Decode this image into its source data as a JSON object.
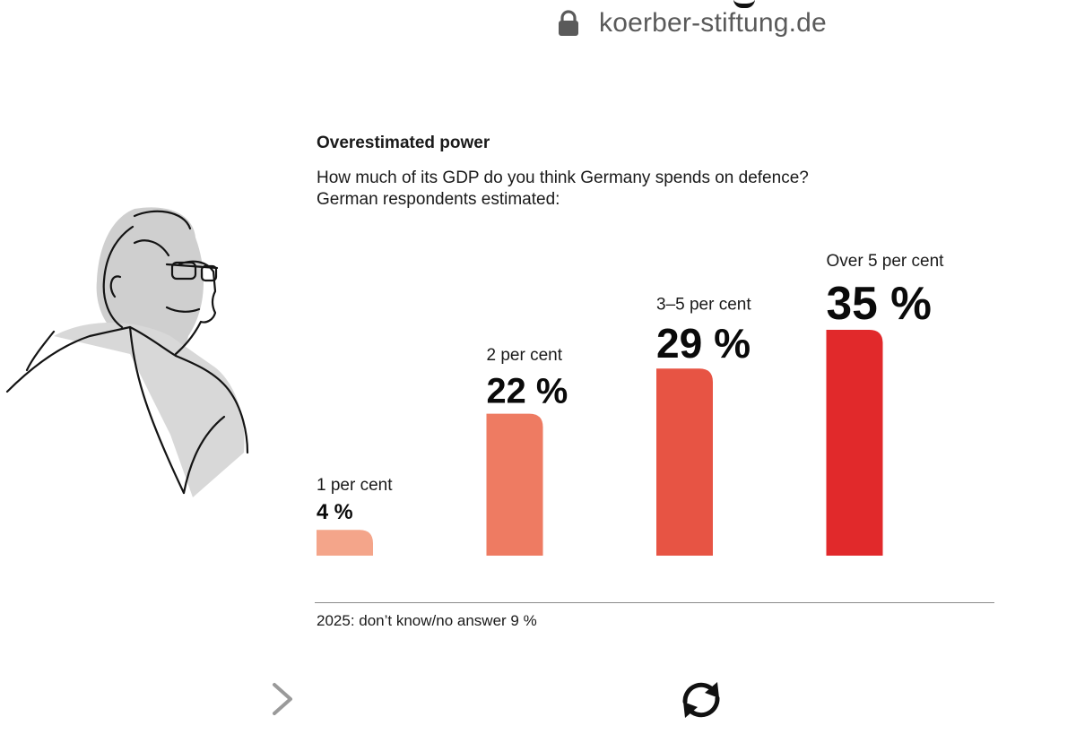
{
  "browser": {
    "url": "koerber-stiftung.de",
    "lock_icon": "lock-icon",
    "next_icon": "chevron-right-icon",
    "reload_icon": "reload-icon"
  },
  "chart_data": {
    "type": "bar",
    "title": "Overestimated power",
    "subtitle_lines": [
      "How much of its GDP do you think Germany spends on defence?",
      "German respondents estimated:"
    ],
    "categories": [
      "1 per cent",
      "2 per cent",
      "3–5 per cent",
      "Over 5 per cent"
    ],
    "values": [
      4,
      22,
      29,
      35
    ],
    "value_labels": [
      "4 %",
      "22 %",
      "29 %",
      "35 %"
    ],
    "colors": [
      "#f4a58a",
      "#ee7b62",
      "#e75444",
      "#e1292b"
    ],
    "ylim": [
      0,
      35
    ],
    "xlabel": "",
    "ylabel": "",
    "grid": false,
    "footnote": "2025: don’t know/no answer 9 %"
  }
}
